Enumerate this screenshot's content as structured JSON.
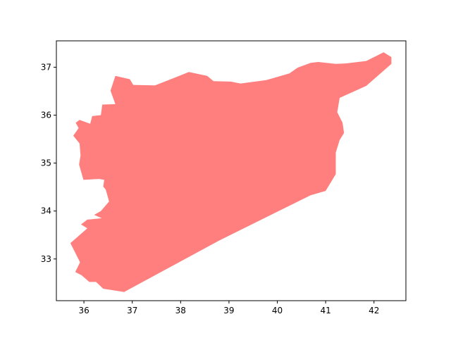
{
  "chart_data": {
    "type": "area",
    "title": "",
    "xlabel": "",
    "ylabel": "",
    "xlim": [
      35.43,
      42.66
    ],
    "ylim": [
      32.13,
      37.55
    ],
    "x_ticks": [
      36,
      37,
      38,
      39,
      40,
      41,
      42
    ],
    "y_ticks": [
      33,
      34,
      35,
      36,
      37
    ],
    "grid": false,
    "series": [
      {
        "fill_color": "#ff7f7f",
        "polygon": [
          [
            36.84,
            32.31
          ],
          [
            36.4,
            32.38
          ],
          [
            36.25,
            32.52
          ],
          [
            36.11,
            32.52
          ],
          [
            35.95,
            32.66
          ],
          [
            35.82,
            32.73
          ],
          [
            35.92,
            32.93
          ],
          [
            35.72,
            33.33
          ],
          [
            36.07,
            33.64
          ],
          [
            35.94,
            33.72
          ],
          [
            36.07,
            33.82
          ],
          [
            36.37,
            33.85
          ],
          [
            36.21,
            33.92
          ],
          [
            36.35,
            34.0
          ],
          [
            36.52,
            34.2
          ],
          [
            36.45,
            34.45
          ],
          [
            36.4,
            34.51
          ],
          [
            36.42,
            34.65
          ],
          [
            36.31,
            34.67
          ],
          [
            35.99,
            34.65
          ],
          [
            35.9,
            34.97
          ],
          [
            35.93,
            35.16
          ],
          [
            35.91,
            35.41
          ],
          [
            35.78,
            35.57
          ],
          [
            35.89,
            35.73
          ],
          [
            35.83,
            35.84
          ],
          [
            35.91,
            35.9
          ],
          [
            36.13,
            35.82
          ],
          [
            36.17,
            35.98
          ],
          [
            36.35,
            36.0
          ],
          [
            36.38,
            36.22
          ],
          [
            36.65,
            36.23
          ],
          [
            36.55,
            36.51
          ],
          [
            36.65,
            36.82
          ],
          [
            36.95,
            36.75
          ],
          [
            37.02,
            36.63
          ],
          [
            37.47,
            36.62
          ],
          [
            38.17,
            36.9
          ],
          [
            38.55,
            36.82
          ],
          [
            38.68,
            36.71
          ],
          [
            39.04,
            36.7
          ],
          [
            39.24,
            36.66
          ],
          [
            39.77,
            36.73
          ],
          [
            40.25,
            36.87
          ],
          [
            40.42,
            36.99
          ],
          [
            40.69,
            37.09
          ],
          [
            40.85,
            37.11
          ],
          [
            41.21,
            37.07
          ],
          [
            41.43,
            37.08
          ],
          [
            41.84,
            37.13
          ],
          [
            42.2,
            37.31
          ],
          [
            42.36,
            37.21
          ],
          [
            42.36,
            37.07
          ],
          [
            41.84,
            36.61
          ],
          [
            41.29,
            36.36
          ],
          [
            41.24,
            36.06
          ],
          [
            41.35,
            35.84
          ],
          [
            41.38,
            35.63
          ],
          [
            41.29,
            35.48
          ],
          [
            41.21,
            35.22
          ],
          [
            41.21,
            34.77
          ],
          [
            41.0,
            34.42
          ],
          [
            40.69,
            34.33
          ],
          [
            38.79,
            33.38
          ],
          [
            36.83,
            32.31
          ]
        ]
      }
    ]
  }
}
